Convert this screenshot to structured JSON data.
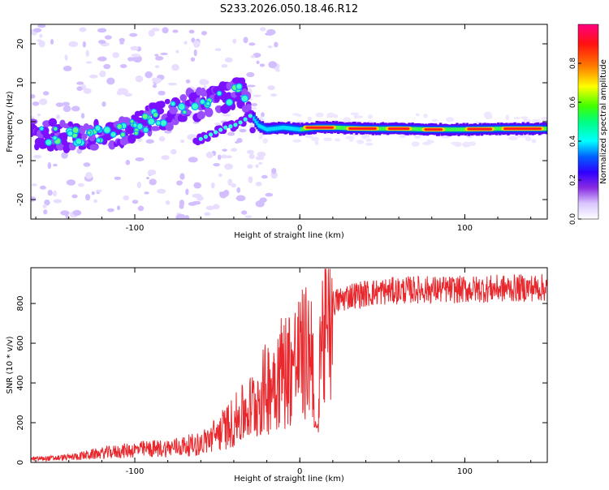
{
  "title": "S233.2026.050.18.46.R12",
  "chart_data": [
    {
      "type": "heatmap",
      "name": "spectrogram",
      "xlabel": "Height of straight line (km)",
      "ylabel": "Frequency (Hz)",
      "xlim": [
        -163,
        150
      ],
      "ylim": [
        -25,
        25
      ],
      "xticks": [
        -100,
        0,
        100
      ],
      "xtick_labels": [
        "-100",
        "0",
        "100"
      ],
      "yticks": [
        -20,
        -10,
        0,
        10,
        20
      ],
      "ytick_labels": [
        "-20",
        "-10",
        "0",
        "10",
        "20"
      ],
      "main_trace": {
        "x": [
          -160,
          -150,
          -140,
          -130,
          -120,
          -110,
          -100,
          -90,
          -80,
          -70,
          -60,
          -50,
          -40,
          -35,
          -30,
          -25,
          -20,
          -10,
          0,
          10,
          20,
          40,
          60,
          80,
          100,
          120,
          150
        ],
        "y": [
          -3,
          -3.5,
          -4,
          -4,
          -3.5,
          -2.5,
          -1.5,
          0.5,
          2,
          4,
          4.5,
          6,
          7,
          8,
          2,
          -1,
          -2,
          -1.5,
          -2,
          -1.5,
          -1.5,
          -1.8,
          -1.8,
          -2,
          -2,
          -1.8,
          -1.8
        ]
      },
      "branch_trace": {
        "x": [
          -63,
          -55,
          -50,
          -45,
          -40,
          -35,
          -30
        ],
        "y": [
          -5,
          -3.5,
          -2.5,
          -1.5,
          -1,
          0,
          1.5
        ]
      }
    },
    {
      "type": "line",
      "name": "snr",
      "xlabel": "Height of straight line (km)",
      "ylabel": "SNR (10 * v/v)",
      "xlim": [
        -163,
        150
      ],
      "ylim": [
        0,
        980
      ],
      "xticks": [
        -100,
        0,
        100
      ],
      "xtick_labels": [
        "-100",
        "0",
        "100"
      ],
      "yticks": [
        0,
        200,
        400,
        600,
        800
      ],
      "ytick_labels": [
        "0",
        "200",
        "400",
        "600",
        "800"
      ],
      "color": "#e8282d",
      "envelope": {
        "x": [
          -163,
          -150,
          -140,
          -120,
          -100,
          -80,
          -60,
          -50,
          -40,
          -30,
          -20,
          -15,
          -10,
          -5,
          0,
          5,
          10,
          15,
          20,
          30,
          50,
          70,
          100,
          120,
          150
        ],
        "y": [
          20,
          25,
          30,
          55,
          75,
          85,
          110,
          170,
          240,
          320,
          440,
          520,
          550,
          580,
          620,
          650,
          700,
          760,
          800,
          840,
          860,
          870,
          870,
          875,
          880
        ]
      },
      "dip": {
        "x": 10,
        "y": 150
      }
    }
  ],
  "colorbar": {
    "label": "Normalized spectral amplitude",
    "range": [
      0,
      1
    ],
    "ticks": [
      0,
      0.2,
      0.4,
      0.6,
      0.8
    ],
    "tick_labels": [
      "0.0",
      "0.2",
      "0.4",
      "0.6",
      "0.8"
    ],
    "colors": [
      "#ffffff",
      "#e0c8ff",
      "#8000ff",
      "#0000ff",
      "#00ffff",
      "#00ff00",
      "#ffff00",
      "#ff8000",
      "#ff0000",
      "#ff0080"
    ]
  }
}
